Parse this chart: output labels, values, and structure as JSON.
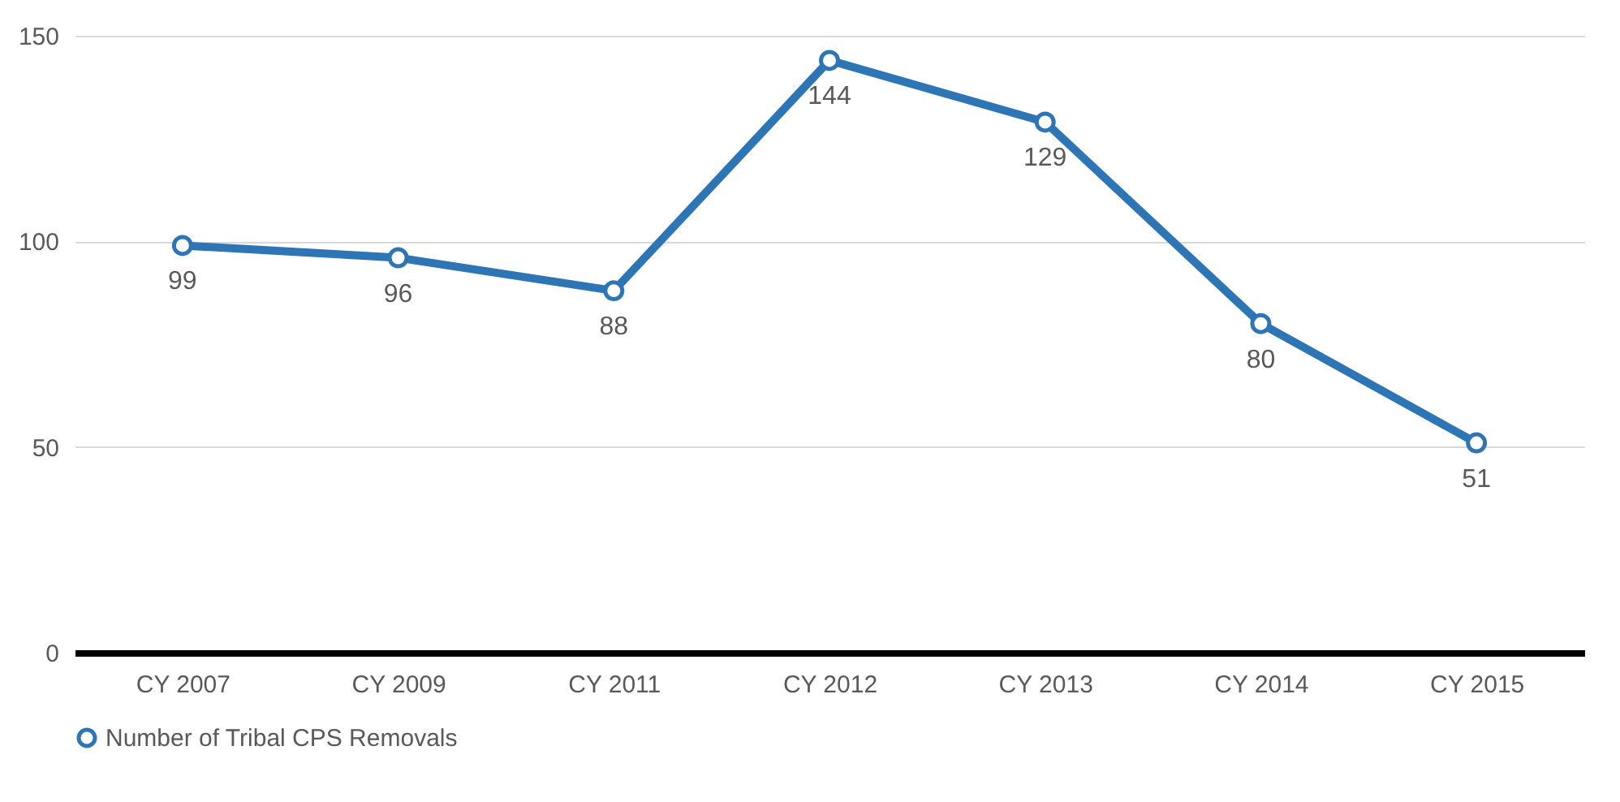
{
  "chart_data": {
    "type": "line",
    "categories": [
      "CY 2007",
      "CY 2009",
      "CY 2011",
      "CY 2012",
      "CY 2013",
      "CY 2014",
      "CY 2015"
    ],
    "series": [
      {
        "name": "Number of Tribal CPS Removals",
        "color": "#2e75b6",
        "values": [
          99,
          96,
          88,
          144,
          129,
          80,
          51
        ]
      }
    ],
    "ylim": [
      0,
      150
    ],
    "yticks": [
      0,
      50,
      100,
      150
    ],
    "grid": "y",
    "legend": "bottom",
    "marker": "circle",
    "line_style": "solid",
    "data_labels": true
  }
}
